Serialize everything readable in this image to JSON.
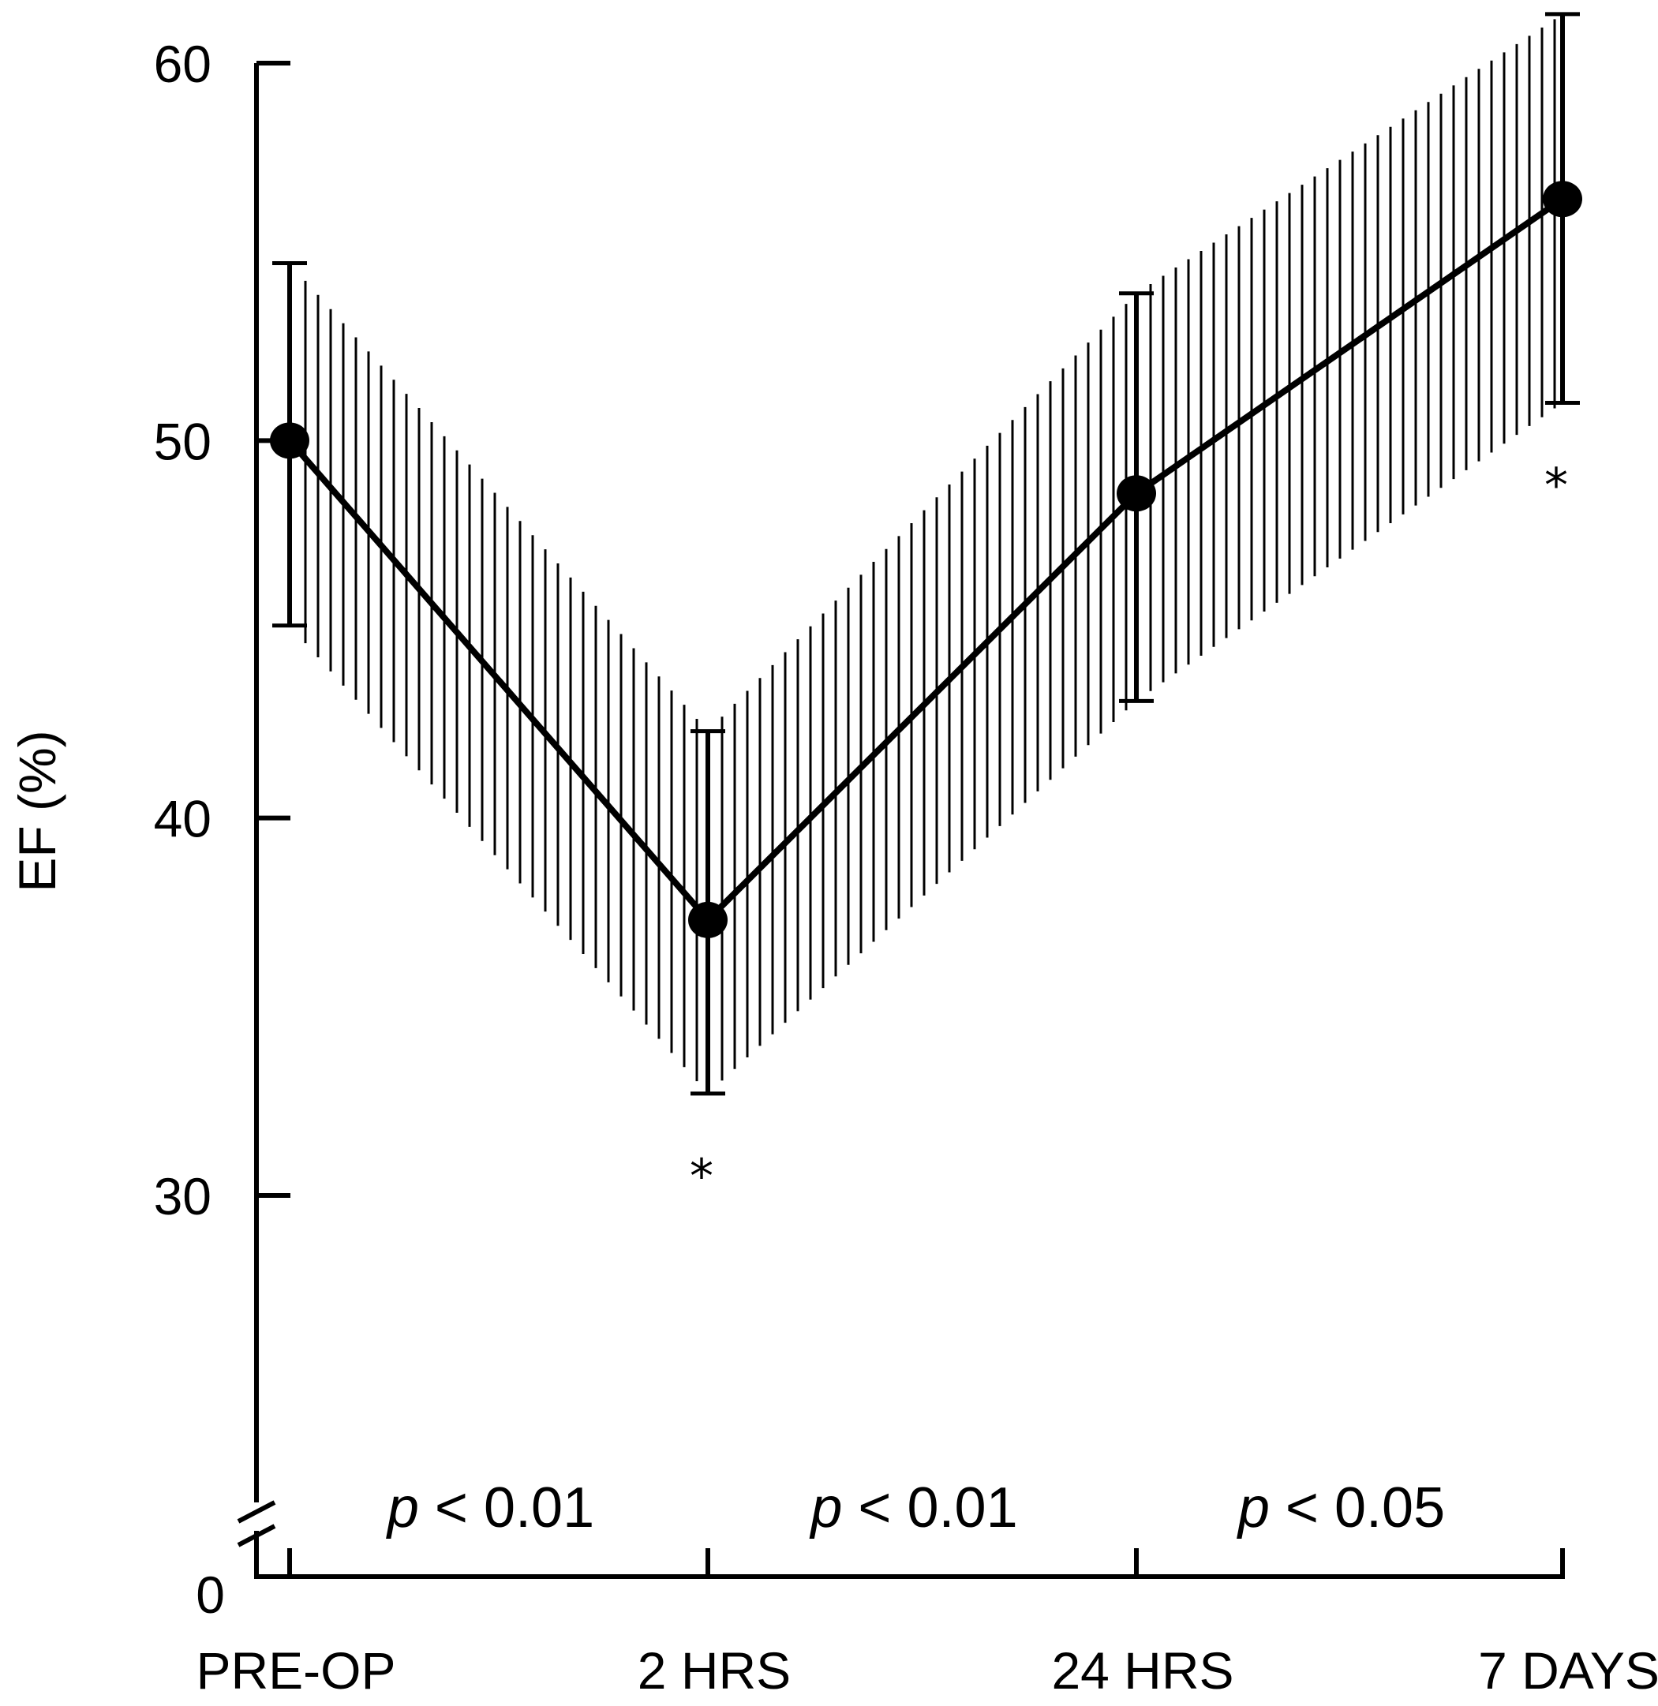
{
  "chart_data": {
    "type": "line",
    "title": "",
    "xlabel": "",
    "ylabel": "EF (%)",
    "categories": [
      "PRE-OP",
      "2 HRS",
      "24 HRS",
      "7 DAYS"
    ],
    "series": [
      {
        "values": [
          50.0,
          37.3,
          48.6,
          56.4
        ],
        "error_upper": [
          54.7,
          42.3,
          53.9,
          61.3
        ],
        "error_lower": [
          45.1,
          32.7,
          43.1,
          51.0
        ]
      }
    ],
    "ylim": [
      0,
      60
    ],
    "y_axis_break": true,
    "yticks": [
      "0",
      "30",
      "40",
      "50",
      "60"
    ],
    "ytick_values": [
      0,
      30,
      40,
      50,
      60
    ],
    "shaded_band": "vertical hatching between the error bounds",
    "grid": false,
    "legend": "none",
    "significance_markers": [
      {
        "category": "2 HRS",
        "text": "*"
      },
      {
        "category": "7 DAYS",
        "text": "*"
      }
    ],
    "interval_labels": [
      {
        "between": [
          "PRE-OP",
          "2 HRS"
        ],
        "italic": "p",
        "rest": " < 0.01"
      },
      {
        "between": [
          "2 HRS",
          "24 HRS"
        ],
        "italic": "p",
        "rest": " < 0.01"
      },
      {
        "between": [
          "24 HRS",
          "7 DAYS"
        ],
        "italic": "p",
        "rest": " < 0.05"
      }
    ]
  }
}
